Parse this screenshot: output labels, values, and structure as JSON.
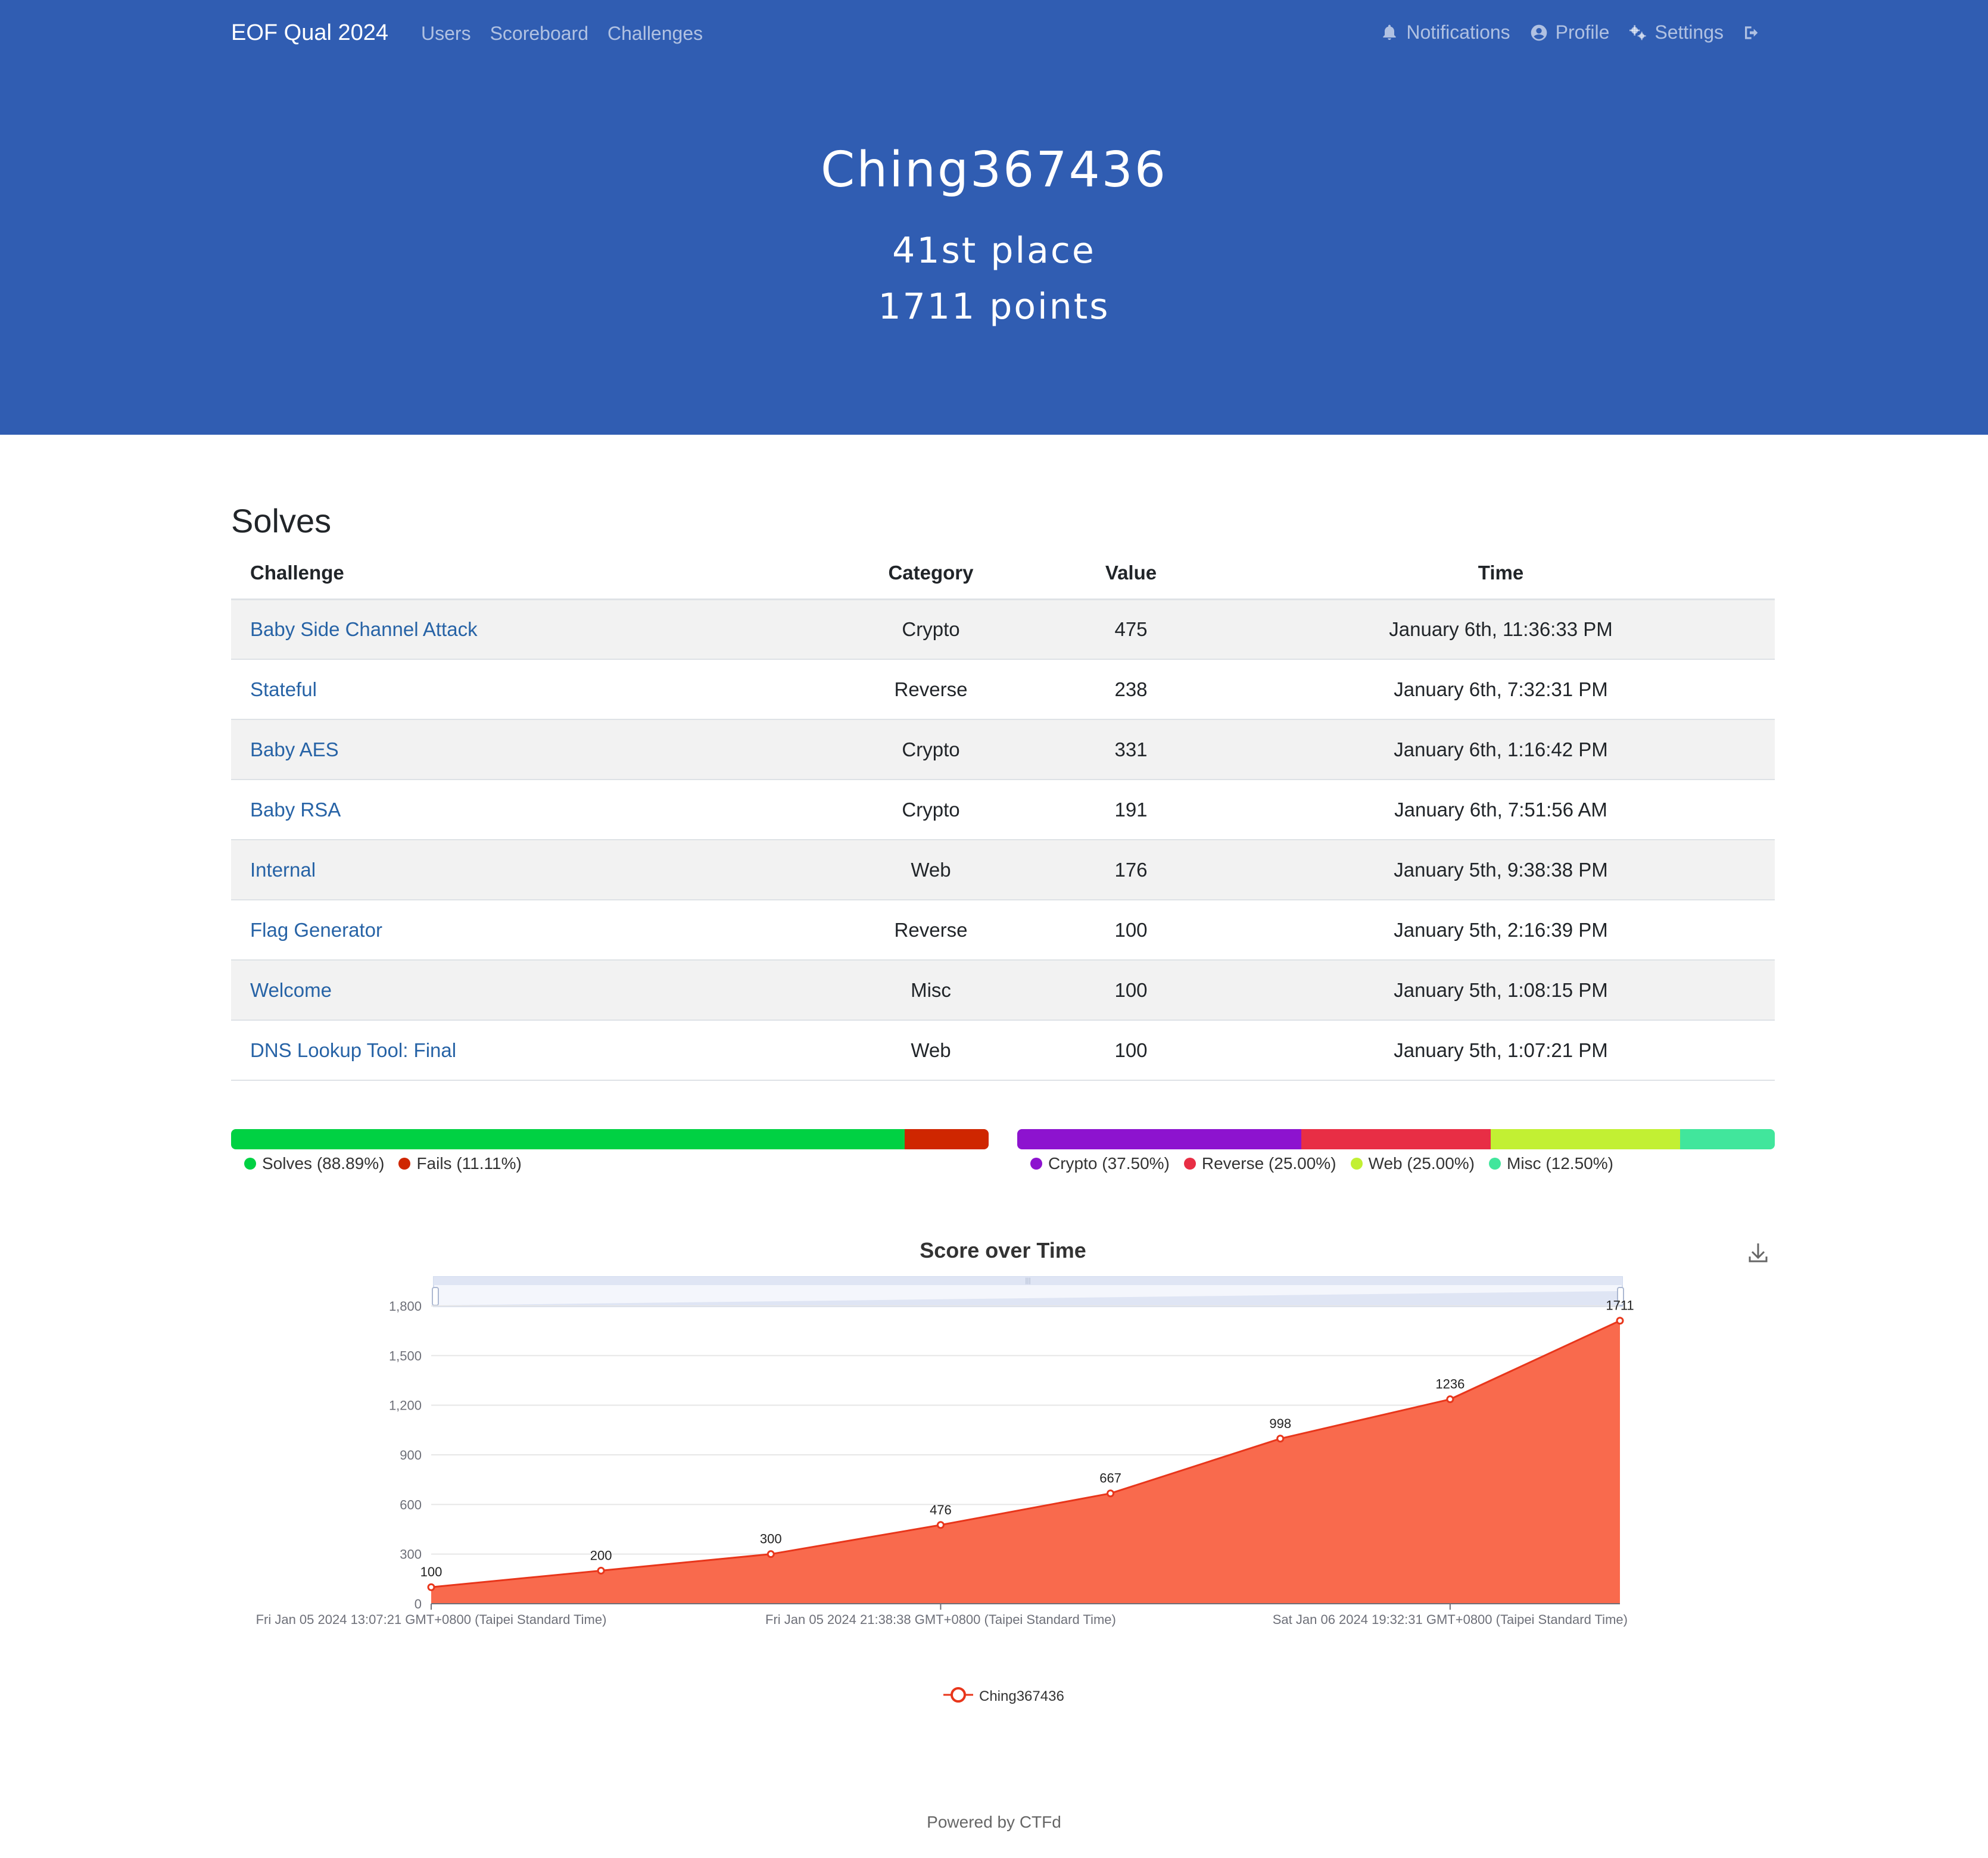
{
  "nav": {
    "brand": "EOF Qual 2024",
    "links": [
      "Users",
      "Scoreboard",
      "Challenges"
    ],
    "notifications": "Notifications",
    "profile": "Profile",
    "settings": "Settings"
  },
  "hero": {
    "name": "Ching367436",
    "place": "41st place",
    "points": "1711 points"
  },
  "solves": {
    "title": "Solves",
    "columns": [
      "Challenge",
      "Category",
      "Value",
      "Time"
    ],
    "rows": [
      {
        "challenge": "Baby Side Channel Attack",
        "category": "Crypto",
        "value": "475",
        "time": "January 6th, 11:36:33 PM"
      },
      {
        "challenge": "Stateful",
        "category": "Reverse",
        "value": "238",
        "time": "January 6th, 7:32:31 PM"
      },
      {
        "challenge": "Baby AES",
        "category": "Crypto",
        "value": "331",
        "time": "January 6th, 1:16:42 PM"
      },
      {
        "challenge": "Baby RSA",
        "category": "Crypto",
        "value": "191",
        "time": "January 6th, 7:51:56 AM"
      },
      {
        "challenge": "Internal",
        "category": "Web",
        "value": "176",
        "time": "January 5th, 9:38:38 PM"
      },
      {
        "challenge": "Flag Generator",
        "category": "Reverse",
        "value": "100",
        "time": "January 5th, 2:16:39 PM"
      },
      {
        "challenge": "Welcome",
        "category": "Misc",
        "value": "100",
        "time": "January 5th, 1:08:15 PM"
      },
      {
        "challenge": "DNS Lookup Tool: Final",
        "category": "Web",
        "value": "100",
        "time": "January 5th, 1:07:21 PM"
      }
    ]
  },
  "solve_bar": {
    "segments": [
      {
        "label": "Solves (88.89%)",
        "percent": 88.89,
        "color": "#00d143"
      },
      {
        "label": "Fails (11.11%)",
        "percent": 11.11,
        "color": "#cf2600"
      }
    ]
  },
  "category_bar": {
    "segments": [
      {
        "label": "Crypto (37.50%)",
        "percent": 37.5,
        "color": "#8d13cf"
      },
      {
        "label": "Reverse (25.00%)",
        "percent": 25.0,
        "color": "#e82e45"
      },
      {
        "label": "Web (25.00%)",
        "percent": 25.0,
        "color": "#c2f033"
      },
      {
        "label": "Misc (12.50%)",
        "percent": 12.5,
        "color": "#41e69c"
      }
    ]
  },
  "chart_data": {
    "type": "area",
    "title": "Score over Time",
    "x": [
      "Fri Jan 05 2024 13:07:21",
      "Fri Jan 05 2024 13:08:15",
      "Fri Jan 05 2024 14:16:39",
      "Fri Jan 05 2024 21:38:38",
      "Sat Jan 06 2024 07:51:56",
      "Sat Jan 06 2024 13:16:42",
      "Sat Jan 06 2024 19:32:31",
      "Sat Jan 06 2024 23:36:33"
    ],
    "x_tick_labels": [
      "Fri Jan 05 2024 13:07:21 GMT+0800 (Taipei Standard Time)",
      "Fri Jan 05 2024 21:38:38 GMT+0800 (Taipei Standard Time)",
      "Sat Jan 06 2024 19:32:31 GMT+0800 (Taipei Standard Time)"
    ],
    "series": [
      {
        "name": "Ching367436",
        "values": [
          100,
          200,
          300,
          476,
          667,
          998,
          1236,
          1711
        ],
        "color": "#e8361b"
      }
    ],
    "y_ticks": [
      "0",
      "300",
      "600",
      "900",
      "1,200",
      "1,500",
      "1,800"
    ],
    "ylim": [
      0,
      1800
    ],
    "grid": true,
    "legend": "bottom-center",
    "download_icon": "download-icon"
  },
  "footer": "Powered by CTFd"
}
